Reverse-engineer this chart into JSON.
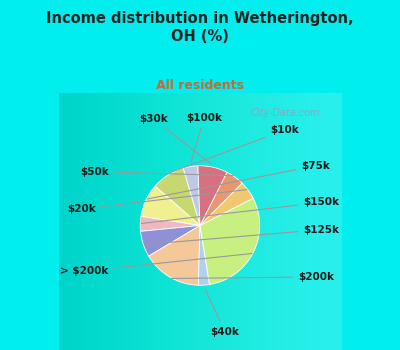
{
  "title": "Income distribution in Wetherington,\nOH (%)",
  "subtitle": "All residents",
  "title_color": "#222222",
  "subtitle_color": "#cc6633",
  "background_color": "#00eeee",
  "chart_bg": "#d8efe0",
  "labels": [
    "$100k",
    "$10k",
    "$75k",
    "$150k",
    "$125k",
    "$200k",
    "$40k",
    "> $200k",
    "$20k",
    "$50k",
    "$30k"
  ],
  "sizes": [
    4,
    9,
    9,
    4,
    7,
    16,
    3,
    30,
    5,
    5,
    8
  ],
  "colors": [
    "#c0c8e8",
    "#c8d870",
    "#f0f090",
    "#f0b8c0",
    "#9090d8",
    "#f5c89a",
    "#b0d0f0",
    "#c8f080",
    "#f0c870",
    "#e89870",
    "#d87080"
  ],
  "startangle": 92,
  "label_fontsize": 7.5,
  "watermark": "City-Data.com"
}
